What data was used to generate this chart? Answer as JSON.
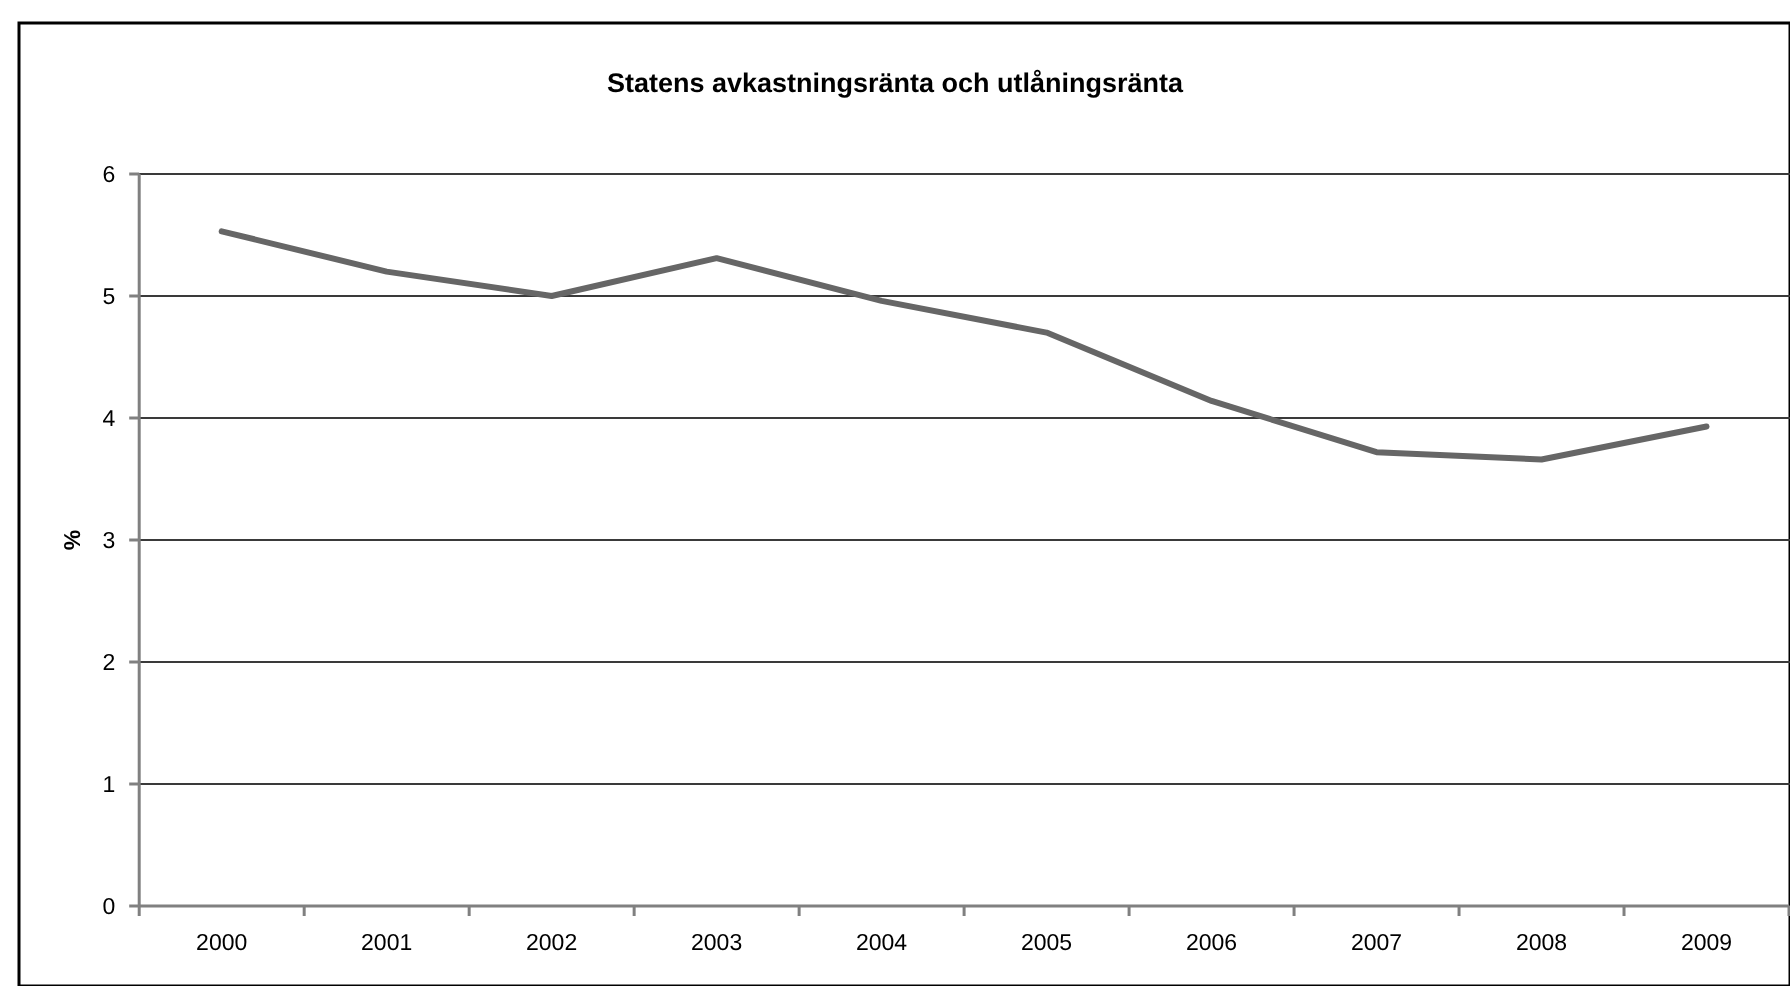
{
  "chart_data": {
    "type": "line",
    "title": "Statens avkastningsränta och utlåningsränta",
    "ylabel": "%",
    "categories": [
      "2000",
      "2001",
      "2002",
      "2003",
      "2004",
      "2005",
      "2006",
      "2007",
      "2008",
      "2009"
    ],
    "series": [
      {
        "color": "#666666",
        "values": [
          5.53,
          5.2,
          5.0,
          5.31,
          4.96,
          4.7,
          4.14,
          3.72,
          3.66,
          3.93
        ]
      }
    ],
    "ylim": [
      0,
      6
    ],
    "yticks": [
      0,
      1,
      2,
      3,
      4,
      5,
      6
    ],
    "grid": "y",
    "marker": "none",
    "line_style": "solid"
  }
}
